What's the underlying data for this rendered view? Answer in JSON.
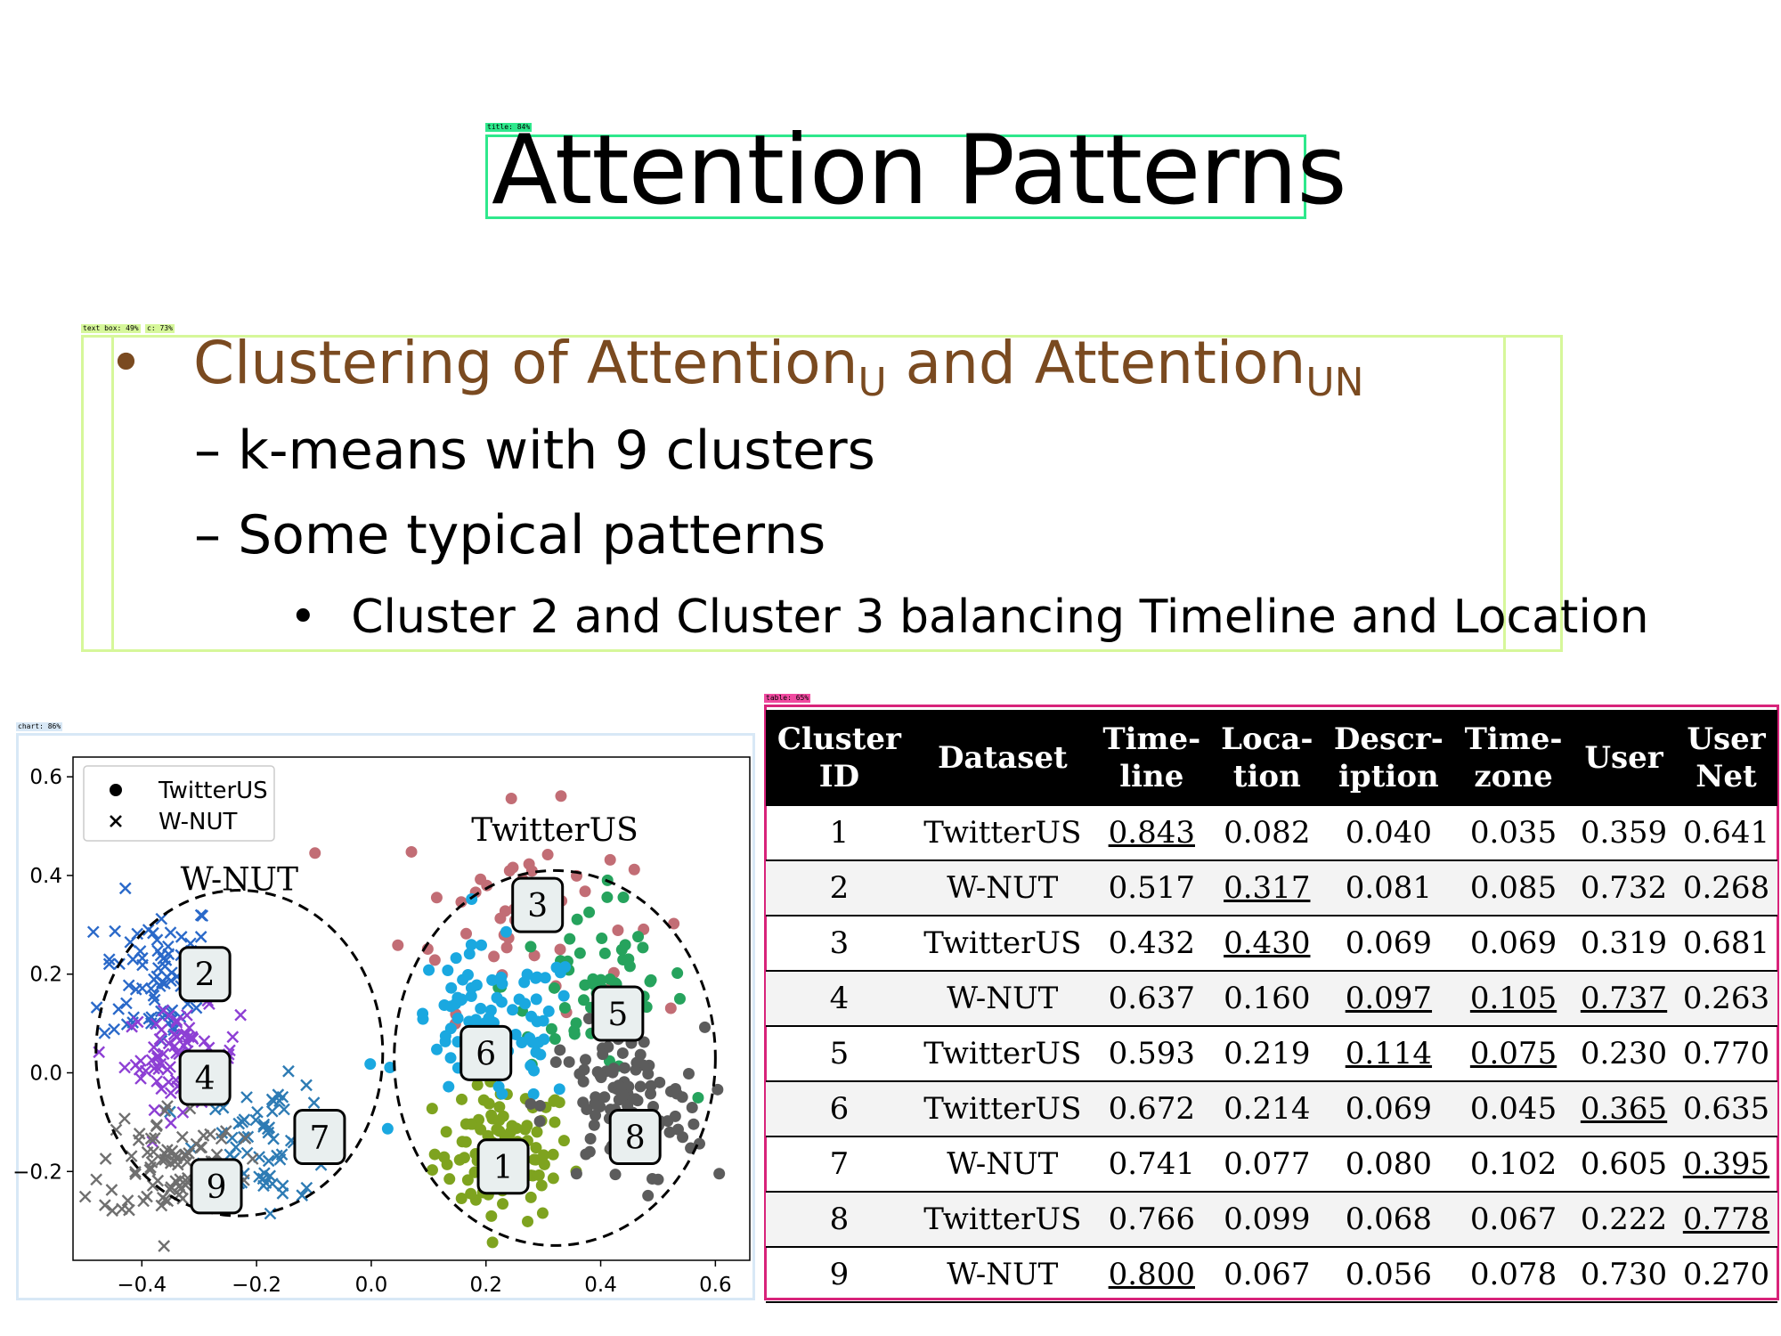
{
  "slide": {
    "title": "Attention Patterns",
    "bullet_main_pre": "Clustering of Attention",
    "bullet_main_sub1": "U",
    "bullet_main_mid": " and Attention",
    "bullet_main_sub2": "UN",
    "bullet_marker": "•",
    "dash_marker": "–",
    "sub_bullets": [
      "k-means with 9 clusters",
      "Some typical patterns"
    ],
    "subsub_bullet": "Cluster 2 and Cluster 3 balancing Timeline and Location"
  },
  "detections": {
    "title": "title: 84%",
    "textbox": "text box: 49%",
    "textbox2": "c: 73%",
    "chart": "chart: 86%",
    "table": "table: 65%"
  },
  "colors": {
    "bullet_main": "#7a4a20",
    "title_det": "#2ee88c",
    "textbox_det": "#d6f79a",
    "chart_det": "#d8e8f6",
    "table_det": "#d8237a"
  },
  "chart_data": {
    "type": "scatter",
    "xlim": [
      -0.52,
      0.66
    ],
    "ylim": [
      -0.38,
      0.64
    ],
    "xticks": [
      "−0.4",
      "−0.2",
      "0.0",
      "0.2",
      "0.4",
      "0.6"
    ],
    "yticks": [
      "−0.2",
      "0.0",
      "0.2",
      "0.4",
      "0.6"
    ],
    "xtick_values": [
      -0.4,
      -0.2,
      0.0,
      0.2,
      0.4,
      0.6
    ],
    "ytick_values": [
      -0.2,
      0.0,
      0.2,
      0.4,
      0.6
    ],
    "legend": [
      {
        "label": "TwitterUS",
        "marker": "dot"
      },
      {
        "label": "W-NUT",
        "marker": "x"
      }
    ],
    "legend_position": "top-left",
    "group_labels": [
      {
        "text": "W-NUT",
        "x": -0.23,
        "y": 0.37
      },
      {
        "text": "TwitterUS",
        "x": 0.32,
        "y": 0.47
      }
    ],
    "clusters": [
      {
        "id": "1",
        "dataset": "TwitterUS",
        "color": "#7ea31f",
        "cx": 0.23,
        "cy": -0.16,
        "sx": 0.06,
        "sy": 0.07,
        "n": 95,
        "label_x": 0.23,
        "label_y": -0.19
      },
      {
        "id": "2",
        "dataset": "W-NUT",
        "color": "#2a69c9",
        "cx": -0.37,
        "cy": 0.2,
        "sx": 0.05,
        "sy": 0.08,
        "n": 80,
        "label_x": -0.29,
        "label_y": 0.2
      },
      {
        "id": "3",
        "dataset": "TwitterUS",
        "color": "#c26d75",
        "cx": 0.25,
        "cy": 0.33,
        "sx": 0.1,
        "sy": 0.1,
        "n": 50,
        "label_x": 0.29,
        "label_y": 0.34
      },
      {
        "id": "4",
        "dataset": "W-NUT",
        "color": "#8d3fd4",
        "cx": -0.33,
        "cy": 0.03,
        "sx": 0.05,
        "sy": 0.05,
        "n": 80,
        "label_x": -0.29,
        "label_y": -0.01
      },
      {
        "id": "5",
        "dataset": "TwitterUS",
        "color": "#26a35d",
        "cx": 0.39,
        "cy": 0.18,
        "sx": 0.08,
        "sy": 0.09,
        "n": 60,
        "label_x": 0.43,
        "label_y": 0.12
      },
      {
        "id": "6",
        "dataset": "TwitterUS",
        "color": "#1aa8e0",
        "cx": 0.21,
        "cy": 0.09,
        "sx": 0.08,
        "sy": 0.08,
        "n": 90,
        "label_x": 0.2,
        "label_y": 0.04
      },
      {
        "id": "7",
        "dataset": "W-NUT",
        "color": "#2d7bb4",
        "cx": -0.18,
        "cy": -0.14,
        "sx": 0.06,
        "sy": 0.06,
        "n": 70,
        "label_x": -0.09,
        "label_y": -0.13
      },
      {
        "id": "8",
        "dataset": "TwitterUS",
        "color": "#5c5c5c",
        "cx": 0.44,
        "cy": -0.07,
        "sx": 0.07,
        "sy": 0.08,
        "n": 110,
        "label_x": 0.46,
        "label_y": -0.13
      },
      {
        "id": "9",
        "dataset": "W-NUT",
        "color": "#6f6f6f",
        "cx": -0.35,
        "cy": -0.18,
        "sx": 0.06,
        "sy": 0.06,
        "n": 80,
        "label_x": -0.27,
        "label_y": -0.23
      }
    ],
    "ellipses": [
      {
        "cx": -0.23,
        "cy": 0.04,
        "rx": 0.25,
        "ry": 0.33
      },
      {
        "cx": 0.32,
        "cy": 0.03,
        "rx": 0.28,
        "ry": 0.38
      }
    ]
  },
  "table": {
    "headers": [
      [
        "Cluster",
        "ID"
      ],
      [
        "Dataset"
      ],
      [
        "Time-",
        "line"
      ],
      [
        "Loca-",
        "tion"
      ],
      [
        "Descr-",
        "iption"
      ],
      [
        "Time-",
        "zone"
      ],
      [
        "User"
      ],
      [
        "User",
        "Net"
      ]
    ],
    "rows": [
      {
        "id": "1",
        "dataset": "TwitterUS",
        "vals": [
          "0.843",
          "0.082",
          "0.040",
          "0.035",
          "0.359",
          "0.641"
        ],
        "ul": [
          true,
          false,
          false,
          false,
          false,
          false
        ]
      },
      {
        "id": "2",
        "dataset": "W-NUT",
        "vals": [
          "0.517",
          "0.317",
          "0.081",
          "0.085",
          "0.732",
          "0.268"
        ],
        "ul": [
          false,
          true,
          false,
          false,
          false,
          false
        ]
      },
      {
        "id": "3",
        "dataset": "TwitterUS",
        "vals": [
          "0.432",
          "0.430",
          "0.069",
          "0.069",
          "0.319",
          "0.681"
        ],
        "ul": [
          false,
          true,
          false,
          false,
          false,
          false
        ]
      },
      {
        "id": "4",
        "dataset": "W-NUT",
        "vals": [
          "0.637",
          "0.160",
          "0.097",
          "0.105",
          "0.737",
          "0.263"
        ],
        "ul": [
          false,
          false,
          true,
          true,
          true,
          false
        ]
      },
      {
        "id": "5",
        "dataset": "TwitterUS",
        "vals": [
          "0.593",
          "0.219",
          "0.114",
          "0.075",
          "0.230",
          "0.770"
        ],
        "ul": [
          false,
          false,
          true,
          true,
          false,
          false
        ]
      },
      {
        "id": "6",
        "dataset": "TwitterUS",
        "vals": [
          "0.672",
          "0.214",
          "0.069",
          "0.045",
          "0.365",
          "0.635"
        ],
        "ul": [
          false,
          false,
          false,
          false,
          true,
          false
        ]
      },
      {
        "id": "7",
        "dataset": "W-NUT",
        "vals": [
          "0.741",
          "0.077",
          "0.080",
          "0.102",
          "0.605",
          "0.395"
        ],
        "ul": [
          false,
          false,
          false,
          false,
          false,
          true
        ]
      },
      {
        "id": "8",
        "dataset": "TwitterUS",
        "vals": [
          "0.766",
          "0.099",
          "0.068",
          "0.067",
          "0.222",
          "0.778"
        ],
        "ul": [
          false,
          false,
          false,
          false,
          false,
          true
        ]
      },
      {
        "id": "9",
        "dataset": "W-NUT",
        "vals": [
          "0.800",
          "0.067",
          "0.056",
          "0.078",
          "0.730",
          "0.270"
        ],
        "ul": [
          true,
          false,
          false,
          false,
          false,
          false
        ]
      }
    ]
  }
}
